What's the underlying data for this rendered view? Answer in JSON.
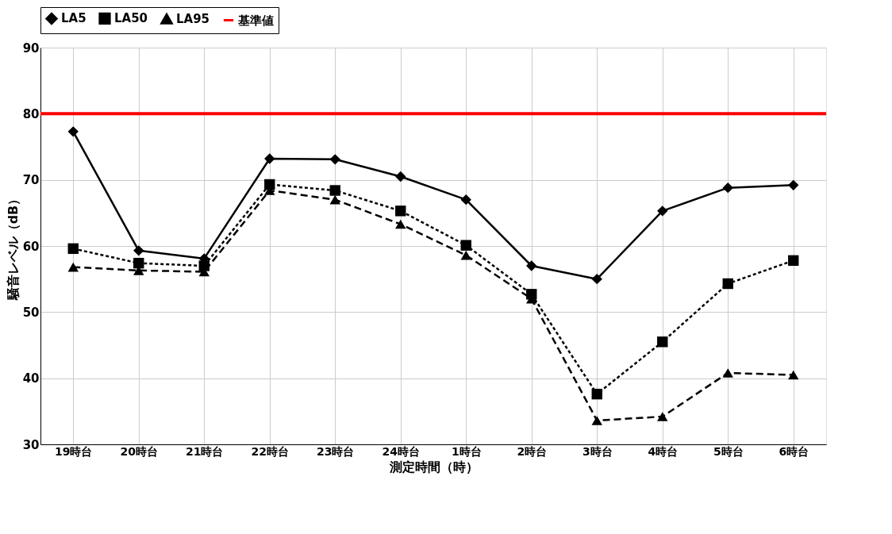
{
  "chart_data": {
    "type": "line",
    "xlabel": "測定時間（時）",
    "ylabel": "騒音レベル（dB）",
    "categories": [
      "19時台",
      "20時台",
      "21時台",
      "22時台",
      "23時台",
      "24時台",
      "1時台",
      "2時台",
      "3時台",
      "4時台",
      "5時台",
      "6時台"
    ],
    "series": [
      {
        "name": "LA5",
        "color": "#000000",
        "marker": "diamond",
        "line_style": "solid",
        "values": [
          77.3,
          59.3,
          58.1,
          73.2,
          73.1,
          70.5,
          67.0,
          57.0,
          55.0,
          65.3,
          68.8,
          69.2
        ]
      },
      {
        "name": "LA50",
        "color": "#000000",
        "marker": "square",
        "line_style": "dotted",
        "values": [
          59.6,
          57.4,
          57.0,
          69.3,
          68.4,
          65.3,
          60.1,
          52.7,
          37.6,
          45.5,
          54.3,
          57.8
        ]
      },
      {
        "name": "LA95",
        "color": "#000000",
        "marker": "triangle",
        "line_style": "dashed",
        "values": [
          56.8,
          56.3,
          56.1,
          68.4,
          67.0,
          63.3,
          58.6,
          52.0,
          33.6,
          34.2,
          40.8,
          40.5
        ]
      }
    ],
    "ref_lines": [
      {
        "axis": "y",
        "value": 80,
        "label": "基準値",
        "color": "#ff0000",
        "line_style": "solid"
      }
    ],
    "ylim": [
      30,
      90
    ],
    "yticks": [
      30,
      40,
      50,
      60,
      70,
      80,
      90
    ],
    "grid": true,
    "legend": "top"
  }
}
